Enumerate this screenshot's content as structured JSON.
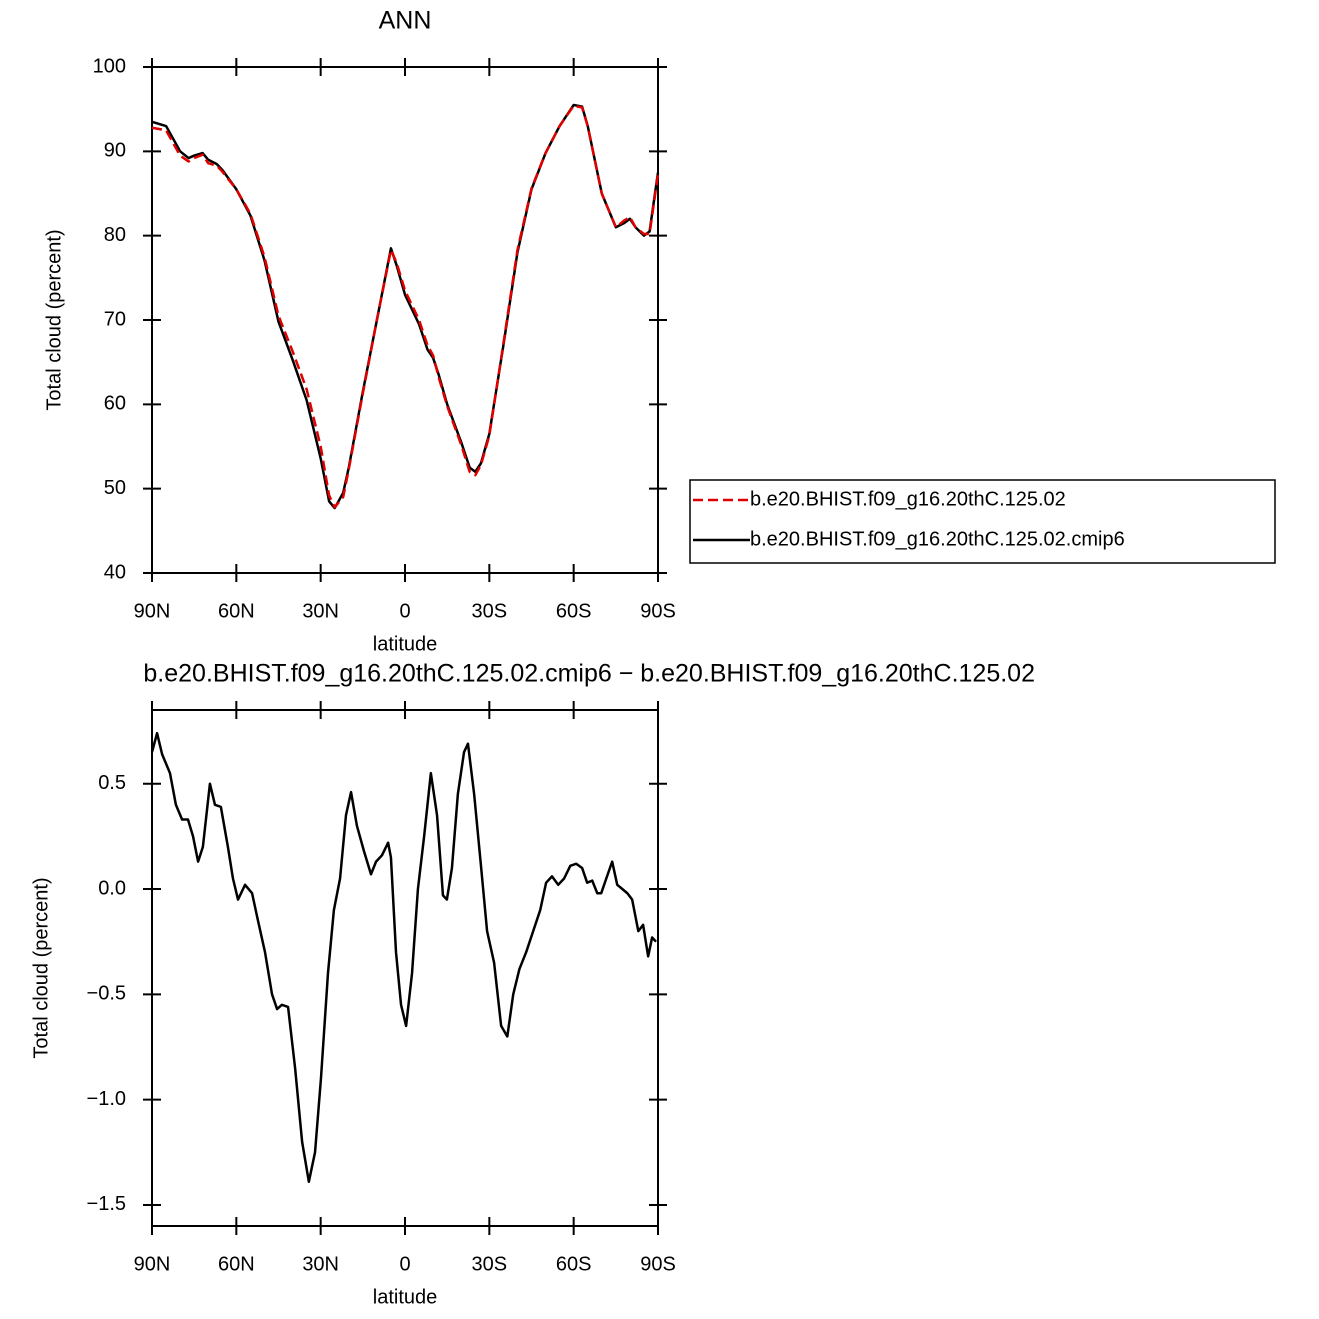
{
  "chart_data": [
    {
      "type": "line",
      "title": "ANN",
      "xlabel": "latitude",
      "ylabel": "Total cloud (percent)",
      "xlim": [
        90,
        -90
      ],
      "ylim": [
        40,
        100
      ],
      "xticks": [
        {
          "value": 90,
          "label": "90N"
        },
        {
          "value": 60,
          "label": "60N"
        },
        {
          "value": 30,
          "label": "30N"
        },
        0,
        {
          "value": -30,
          "label": "30S"
        },
        {
          "value": -60,
          "label": "60S"
        },
        {
          "value": -90,
          "label": "90S"
        }
      ],
      "yticks": [
        40,
        50,
        60,
        70,
        80,
        90,
        100
      ],
      "legend": "right",
      "x": [
        90,
        85,
        80,
        77,
        75,
        72,
        70,
        67,
        65,
        60,
        55,
        50,
        45,
        40,
        35,
        30,
        27,
        25,
        22,
        20,
        15,
        10,
        5,
        3,
        0,
        -5,
        -8,
        -10,
        -12,
        -15,
        -20,
        -23,
        -25,
        -27,
        -30,
        -35,
        -40,
        -45,
        -50,
        -55,
        -60,
        -63,
        -65,
        -70,
        -75,
        -78,
        -80,
        -82,
        -85,
        -87,
        -90
      ],
      "series": [
        {
          "name": "b.e20.BHIST.f09_g16.20thC.125.02",
          "color": "#e00000",
          "line_style": "dashed",
          "values": [
            92.8,
            92.5,
            89.5,
            88.8,
            89.2,
            89.6,
            88.6,
            88.3,
            87.6,
            85.5,
            82.6,
            77.5,
            70.5,
            66.3,
            61.8,
            55.0,
            49.2,
            47.8,
            49.0,
            52.3,
            61.3,
            70.0,
            78.3,
            76.8,
            73.5,
            70.0,
            67.0,
            65.8,
            63.2,
            59.8,
            55.2,
            52.0,
            51.6,
            52.8,
            56.3,
            67.2,
            78.3,
            85.6,
            89.8,
            93.0,
            95.4,
            95.2,
            93.0,
            85.0,
            81.0,
            81.8,
            82.2,
            81.0,
            80.2,
            80.2,
            87.3
          ]
        },
        {
          "name": "b.e20.BHIST.f09_g16.20thC.125.02.cmip6",
          "color": "#000000",
          "line_style": "solid",
          "values": [
            93.5,
            93.0,
            90.0,
            89.2,
            89.5,
            89.8,
            89.0,
            88.5,
            87.8,
            85.5,
            82.4,
            77.1,
            69.8,
            65.3,
            60.5,
            53.6,
            48.5,
            47.7,
            49.5,
            52.5,
            61.5,
            70.0,
            78.5,
            76.5,
            73.0,
            69.5,
            66.5,
            65.5,
            63.5,
            60.0,
            55.5,
            52.5,
            52.0,
            53.0,
            56.5,
            67.0,
            78.0,
            85.5,
            89.8,
            93.0,
            95.5,
            95.3,
            93.0,
            85.0,
            81.0,
            81.5,
            82.0,
            81.0,
            80.0,
            80.5,
            87.5
          ]
        }
      ]
    },
    {
      "type": "line",
      "title": "b.e20.BHIST.f09_g16.20thC.125.02.cmip6 − b.e20.BHIST.f09_g16.20thC.125.02",
      "xlabel": "latitude",
      "ylabel": "Total cloud (percent)",
      "xlim": [
        90,
        -90
      ],
      "ylim": [
        -1.6,
        0.85
      ],
      "xticks": [
        {
          "value": 90,
          "label": "90N"
        },
        {
          "value": 60,
          "label": "60N"
        },
        {
          "value": 30,
          "label": "30N"
        },
        0,
        {
          "value": -30,
          "label": "30S"
        },
        {
          "value": -60,
          "label": "60S"
        },
        {
          "value": -90,
          "label": "90S"
        }
      ],
      "yticks": [
        {
          "value": -1.5,
          "label": "−1.5"
        },
        {
          "value": -1,
          "label": "−1.0"
        },
        {
          "value": -0.5,
          "label": "−0.5"
        },
        {
          "value": 0,
          "label": "0.0"
        },
        0.5
      ],
      "x": [
        90,
        88.2,
        86.4,
        83.6,
        81.5,
        79.3,
        77.2,
        75.4,
        73.6,
        71.9,
        69.4,
        67.6,
        65.5,
        63,
        61.2,
        59.4,
        56.9,
        54.4,
        52.3,
        49.8,
        47.3,
        45.5,
        43.8,
        41.6,
        39.1,
        36.6,
        34.2,
        32,
        29.9,
        27.4,
        25.3,
        23.1,
        21,
        19.2,
        17.1,
        14.6,
        12.1,
        10.3,
        8.2,
        6,
        5,
        3.2,
        1.4,
        -0.4,
        -2.5,
        -4.6,
        -6.8,
        -9.2,
        -11.4,
        -13.5,
        -14.9,
        -16.7,
        -18.8,
        -21,
        -22.4,
        -24.6,
        -27.1,
        -29.2,
        -31.7,
        -34.2,
        -36.4,
        -38.5,
        -40.7,
        -43.1,
        -45.6,
        -48.1,
        -50.2,
        -52.3,
        -54.5,
        -56.6,
        -58.8,
        -60.9,
        -63,
        -64.8,
        -66.6,
        -68.4,
        -69.8,
        -71.6,
        -73.7,
        -75.5,
        -77.3,
        -79.1,
        -80.8,
        -83,
        -84.7,
        -86.5,
        -87.9,
        -89.3
      ],
      "color": "#000000",
      "values": [
        0.65,
        0.74,
        0.64,
        0.55,
        0.4,
        0.33,
        0.33,
        0.25,
        0.13,
        0.2,
        0.5,
        0.4,
        0.39,
        0.2,
        0.05,
        -0.05,
        0.02,
        -0.02,
        -0.15,
        -0.3,
        -0.5,
        -0.57,
        -0.55,
        -0.56,
        -0.85,
        -1.2,
        -1.39,
        -1.25,
        -0.9,
        -0.4,
        -0.1,
        0.05,
        0.35,
        0.46,
        0.3,
        0.18,
        0.07,
        0.13,
        0.16,
        0.22,
        0.15,
        -0.3,
        -0.55,
        -0.65,
        -0.4,
        0.0,
        0.25,
        0.55,
        0.35,
        -0.03,
        -0.05,
        0.1,
        0.45,
        0.65,
        0.69,
        0.45,
        0.1,
        -0.2,
        -0.35,
        -0.65,
        -0.7,
        -0.5,
        -0.38,
        -0.3,
        -0.2,
        -0.1,
        0.03,
        0.06,
        0.02,
        0.05,
        0.11,
        0.12,
        0.1,
        0.03,
        0.04,
        -0.02,
        -0.02,
        0.05,
        0.13,
        0.02,
        0.0,
        -0.02,
        -0.05,
        -0.2,
        -0.17,
        -0.32,
        -0.23,
        -0.25
      ]
    }
  ]
}
